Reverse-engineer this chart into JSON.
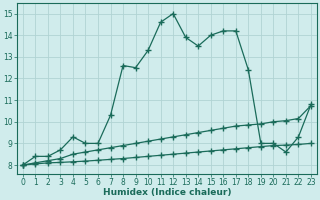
{
  "xlabel": "Humidex (Indice chaleur)",
  "background_color": "#d0ecec",
  "grid_color": "#b0d4d4",
  "line_color": "#1a6b5a",
  "xlim": [
    -0.5,
    23.5
  ],
  "ylim": [
    7.6,
    15.5
  ],
  "xticks": [
    0,
    1,
    2,
    3,
    4,
    5,
    6,
    7,
    8,
    9,
    10,
    11,
    12,
    13,
    14,
    15,
    16,
    17,
    18,
    19,
    20,
    21,
    22,
    23
  ],
  "yticks": [
    8,
    9,
    10,
    11,
    12,
    13,
    14,
    15
  ],
  "line1_x": [
    0,
    1,
    2,
    3,
    4,
    5,
    6,
    7,
    8,
    9,
    10,
    11,
    12,
    13,
    14,
    15,
    16,
    17,
    18,
    19,
    20,
    21,
    22,
    23
  ],
  "line1_y": [
    8.0,
    8.4,
    8.4,
    8.7,
    9.3,
    9.0,
    9.0,
    10.3,
    12.6,
    12.5,
    13.3,
    14.6,
    15.0,
    13.9,
    13.5,
    14.0,
    14.2,
    14.2,
    12.4,
    9.0,
    9.0,
    8.6,
    9.3,
    10.8
  ],
  "line2_x": [
    0,
    1,
    2,
    3,
    4,
    5,
    6,
    7,
    8,
    9,
    10,
    11,
    12,
    13,
    14,
    15,
    16,
    17,
    18,
    19,
    20,
    21,
    22,
    23
  ],
  "line2_y": [
    8.0,
    8.1,
    8.2,
    8.3,
    8.5,
    8.6,
    8.7,
    8.8,
    8.9,
    9.0,
    9.1,
    9.2,
    9.3,
    9.4,
    9.5,
    9.6,
    9.7,
    9.8,
    9.85,
    9.9,
    10.0,
    10.05,
    10.15,
    10.75
  ],
  "line3_x": [
    0,
    1,
    2,
    3,
    4,
    5,
    6,
    7,
    8,
    9,
    10,
    11,
    12,
    13,
    14,
    15,
    16,
    17,
    18,
    19,
    20,
    21,
    22,
    23
  ],
  "line3_y": [
    8.0,
    8.05,
    8.1,
    8.12,
    8.15,
    8.18,
    8.22,
    8.26,
    8.3,
    8.35,
    8.4,
    8.45,
    8.5,
    8.55,
    8.6,
    8.65,
    8.7,
    8.75,
    8.8,
    8.85,
    8.9,
    8.92,
    8.95,
    9.0
  ]
}
